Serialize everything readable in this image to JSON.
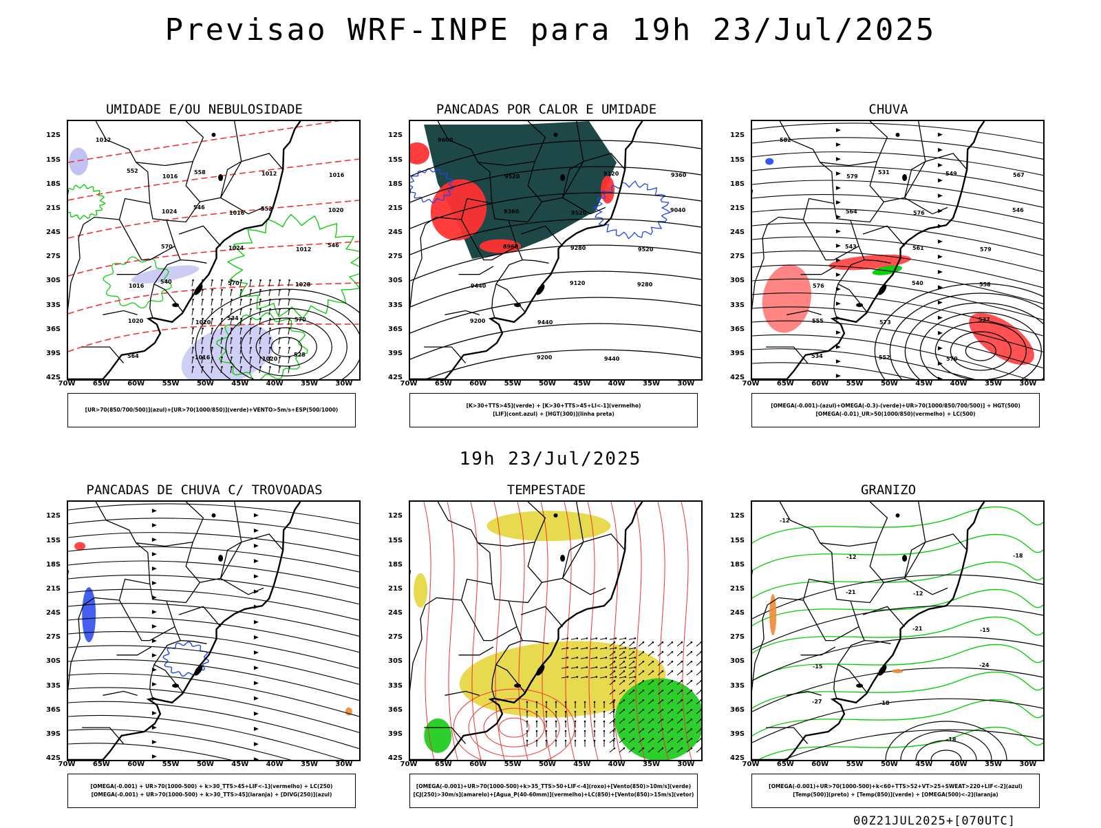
{
  "header": {
    "title": "Previsao WRF-INPE  para 19h 23/Jul/2025"
  },
  "middle_title": "19h 23/Jul/2025",
  "footer": "00Z21JUL2025+[070UTC]",
  "axes": {
    "lat_labels": [
      "12S",
      "15S",
      "18S",
      "21S",
      "24S",
      "27S",
      "30S",
      "33S",
      "36S",
      "39S",
      "42S"
    ],
    "lon_labels": [
      "70W",
      "65W",
      "60W",
      "55W",
      "50W",
      "45W",
      "40W",
      "35W",
      "30W"
    ]
  },
  "panels": [
    {
      "title": "UMIDADE E/OU NEBULOSIDADE",
      "legend": [
        "[UR>70(850/700/500)](azul)+[UR>70(1000/850)](verde)+VENTO>5m/s+ESP(500/1000)"
      ],
      "contour_labels": [
        "1012",
        "1016",
        "1016",
        "1012",
        "1016",
        "1020",
        "1020",
        "1016",
        "1024",
        "1024",
        "1028",
        "1020",
        "1016",
        "1012",
        "1020",
        "570",
        "570",
        "570",
        "564",
        "558",
        "552",
        "546",
        "540",
        "534",
        "528",
        "552",
        "546"
      ]
    },
    {
      "title": "PANCADAS POR CALOR E UMIDADE",
      "legend": [
        "[K>30+TTS>45](verde) + [K>30+TTS>45+LI<-1](vermelho)",
        "[LIF](cont.azul) + [HGT(300)](linha preta)"
      ],
      "contour_labels": [
        "9600",
        "9520",
        "9520",
        "9520",
        "9440",
        "9440",
        "9440",
        "9360",
        "9360",
        "9280",
        "9280",
        "9200",
        "9200",
        "9120",
        "9040",
        "8960",
        "9120"
      ]
    },
    {
      "title": "CHUVA",
      "legend": [
        "[OMEGA(-0.001)-(azul)+OMEGA(-0.3)-(verde)+UR>70(1000/850/700/500)] + HGT(500)",
        "[OMEGA(-0.01)_UR>50(1000/850)(vermelho) + LC(500)"
      ],
      "contour_labels": [
        "582",
        "579",
        "576",
        "579",
        "576",
        "573",
        "570",
        "567",
        "564",
        "561",
        "558",
        "555",
        "552",
        "549",
        "546",
        "543",
        "540",
        "537",
        "534",
        "531"
      ]
    },
    {
      "title": "PANCADAS DE CHUVA C/ TROVOADAS",
      "legend": [
        "[OMEGA(-0.001) + UR>70(1000-500) + k>30_TTS>45+LIF<-1](vermelho) + LC(250)",
        "[OMEGA(-0.001) + UR>70(1000-500) + k>30_TTS>45](laranja) + [DIVG(250)](azul)"
      ],
      "contour_labels": []
    },
    {
      "title": "TEMPESTADE",
      "legend": [
        "[OMEGA(-0.001)+UR>70(1000-500)+k>35_TTS>50+LIF<-4](roxo)+[Vento(850)>10m/s](verde)",
        "[CJ(250)>30m/s](amarelo)+[Agua_P(40-60mm)](vermelho)+LC(850)+[Vento(850)>15m/s](vetor)"
      ],
      "contour_labels": []
    },
    {
      "title": "GRANIZO",
      "legend": [
        "[OMEGA(-0.001)+UR>70(1000-500)+k<60+TTS>52+VT>25+SWEAT>220+LIF<-2](azul)",
        "[Temp(500)](preto) + [Temp(850)](verde) + [OMEGA(500)<-2](laranja)"
      ],
      "contour_labels": [
        "-12",
        "-12",
        "-12",
        "-15",
        "-15",
        "-18",
        "-18",
        "-18",
        "-21",
        "-21",
        "-24",
        "-27"
      ]
    }
  ],
  "colors": {
    "coast": "#000000",
    "humid_low_green": "#00cc00",
    "humid_mid_blue": "#aaaaee",
    "red_contour": "#ee3333",
    "dark_teal": "#1e4848",
    "red_fill": "#ff3333",
    "blue": "#2244ee",
    "yellow": "#e6d844",
    "green_fill": "#22cc22",
    "orange": "#ee8833"
  }
}
